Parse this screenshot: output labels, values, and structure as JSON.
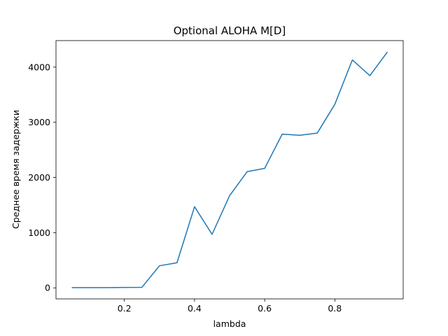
{
  "chart_data": {
    "type": "line",
    "title": "Optional ALOHA M[D]",
    "xlabel": "lambda",
    "ylabel": "Среднее время задержки",
    "xlim": [
      0.005,
      0.995
    ],
    "ylim": [
      -200,
      4480
    ],
    "xticks": [
      0.2,
      0.4,
      0.6,
      0.8
    ],
    "xtick_labels": [
      "0.2",
      "0.4",
      "0.6",
      "0.8"
    ],
    "yticks": [
      0,
      1000,
      2000,
      3000,
      4000
    ],
    "ytick_labels": [
      "0",
      "1000",
      "2000",
      "3000",
      "4000"
    ],
    "grid": false,
    "series": [
      {
        "color": "#1f77b4",
        "x": [
          0.05,
          0.1,
          0.15,
          0.2,
          0.25,
          0.3,
          0.35,
          0.4,
          0.45,
          0.5,
          0.55,
          0.6,
          0.65,
          0.7,
          0.75,
          0.8,
          0.85,
          0.9,
          0.95
        ],
        "y": [
          5,
          5,
          5,
          7,
          10,
          400,
          455,
          1470,
          970,
          1670,
          2105,
          2165,
          2785,
          2765,
          2805,
          3325,
          4130,
          3845,
          4275
        ]
      }
    ]
  }
}
